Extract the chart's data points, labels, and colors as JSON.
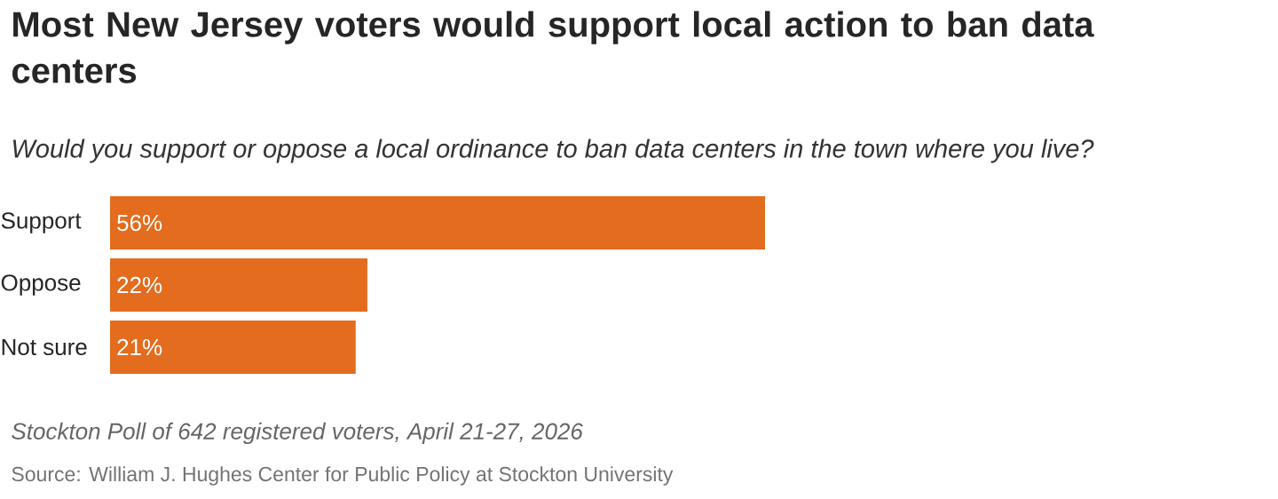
{
  "chart_data": {
    "type": "bar",
    "orientation": "horizontal",
    "title": "Most New Jersey voters would support local action to ban data centers",
    "subtitle": "Would you support or oppose a local ordinance to ban data centers in the town where you live?",
    "categories": [
      "Support",
      "Oppose",
      "Not sure"
    ],
    "values": [
      56,
      22,
      21
    ],
    "color": "#e36c1e",
    "value_labels": [
      "56%",
      "22%",
      "21%"
    ],
    "annotations": [
      "Stockton Poll of 642 registered voters, April 21-27, 2026",
      "Source: William J. Hughes Center for Public Policy at Stockton University"
    ]
  }
}
